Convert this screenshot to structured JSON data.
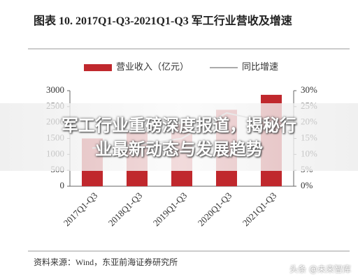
{
  "chart_data": {
    "type": "bar",
    "title": "图表 10. 2017Q1-Q3-2021Q1-Q3 军工行业营收及增速",
    "categories": [
      "2017Q1-Q3",
      "2018Q1-Q3",
      "2019Q1-Q3",
      "2020Q1-Q3",
      "2021Q1-Q3"
    ],
    "series": [
      {
        "name": "营业收入（亿元）",
        "color": "#c0282d",
        "values": [
          1500,
          1700,
          1950,
          2400,
          2870
        ]
      },
      {
        "name": "同比增速",
        "color": "#aaaaaa",
        "axis": "y2",
        "values": [
          12,
          13,
          15,
          23,
          20
        ]
      }
    ],
    "ylim": [
      0,
      3000
    ],
    "yticks": [
      0,
      500,
      1000,
      1500,
      2000,
      2500,
      3000
    ],
    "y2lim": [
      0,
      30
    ],
    "y2ticks": [
      {
        "value": 0,
        "label": "0%"
      },
      {
        "value": 5,
        "label": "5%"
      },
      {
        "value": 10,
        "label": "10%"
      },
      {
        "value": 15,
        "label": "15%"
      },
      {
        "value": 20,
        "label": "20%"
      },
      {
        "value": 25,
        "label": "25%"
      },
      {
        "value": 30,
        "label": "30%"
      }
    ],
    "source": "资料来源：Wind，东亚前海证券研究所"
  },
  "banner": "军工行业重磅深度报道，揭秘行业最新动态与发展趋势",
  "watermark": "头条 @未来智库"
}
